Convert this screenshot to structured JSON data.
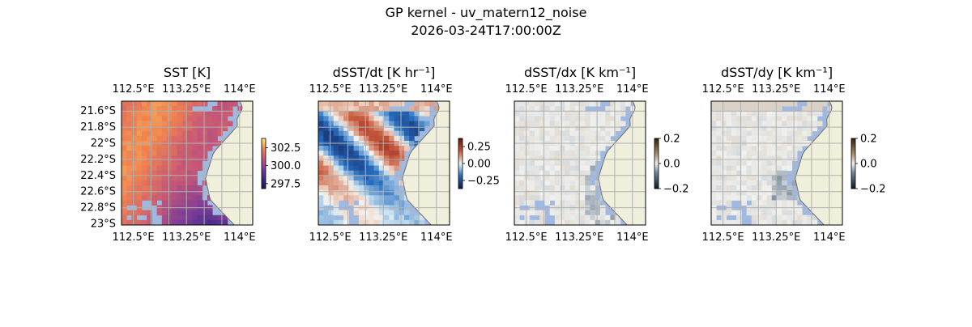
{
  "figure": {
    "title_line1": "GP kernel - uv_matern12_noise",
    "title_line2": "2026-03-24T17:00:00Z"
  },
  "colors": {
    "land": "#efefdb",
    "ocean_mask": "#a0b9e0",
    "grid": "#b0b0b0",
    "coast": "#6f6f6f"
  },
  "chart_data": [
    {
      "type": "heatmap",
      "title": "SST [K]",
      "variable": "SST",
      "colormap": "thermal",
      "lon_ticks": [
        "112.5°E",
        "113.25°E",
        "114°E"
      ],
      "lat_ticks": [
        "21.6°S",
        "21.8°S",
        "22°S",
        "22.2°S",
        "22.4°S",
        "22.6°S",
        "22.8°S",
        "23°S"
      ],
      "colorbar": {
        "ticks": [
          "302.5",
          "300.0",
          "297.5"
        ],
        "range": [
          296.8,
          303.8
        ]
      },
      "grid": true
    },
    {
      "type": "heatmap",
      "title": "dSST/dt [K hr⁻¹]",
      "variable": "dSST/dt",
      "colormap": "balance",
      "lon_ticks": [
        "112.5°E",
        "113.25°E",
        "114°E"
      ],
      "colorbar": {
        "ticks": [
          "0.25",
          "0.00",
          "−0.25"
        ],
        "range": [
          -0.37,
          0.37
        ]
      },
      "grid": true
    },
    {
      "type": "heatmap",
      "title": "dSST/dx [K km⁻¹]",
      "variable": "dSST/dx",
      "colormap": "diff",
      "lon_ticks": [
        "112.5°E",
        "113.25°E",
        "114°E"
      ],
      "colorbar": {
        "ticks": [
          "0.2",
          "0.0",
          "−0.2"
        ],
        "range": [
          -0.2,
          0.2
        ]
      },
      "grid": true
    },
    {
      "type": "heatmap",
      "title": "dSST/dy [K km⁻¹]",
      "variable": "dSST/dy",
      "colormap": "diff",
      "lon_ticks": [
        "112.5°E",
        "113.25°E",
        "114°E"
      ],
      "colorbar": {
        "ticks": [
          "0.2",
          "0.0",
          "−0.2"
        ],
        "range": [
          -0.2,
          0.2
        ]
      },
      "grid": true
    }
  ]
}
